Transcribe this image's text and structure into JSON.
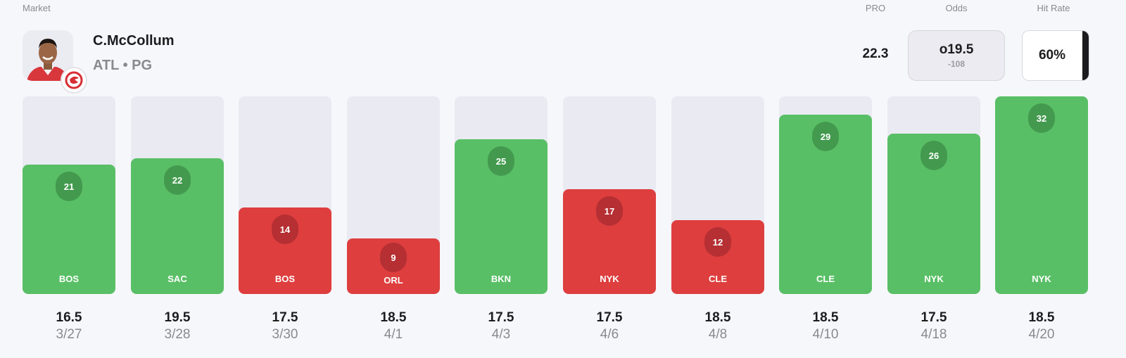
{
  "header": {
    "market_label": "Market",
    "pro_label": "PRO",
    "odds_label": "Odds",
    "hit_rate_label": "Hit Rate"
  },
  "player": {
    "name": "C.McCollum",
    "team": "ATL",
    "position": "PG",
    "subtitle": "ATL • PG",
    "team_logo_icon": "atlanta-hawks-logo-icon"
  },
  "stats": {
    "pro": "22.3",
    "odds_line": "o19.5",
    "odds_price": "-108",
    "hit_rate": "60%"
  },
  "colors": {
    "over": "#59bf66",
    "under": "#de3e3e",
    "over_badge": "#439a4f",
    "under_badge": "#b52f33",
    "track": "#eaeaf2",
    "background": "#f6f7fb"
  },
  "games": [
    {
      "value": "21",
      "opponent": "BOS",
      "line": "16.5",
      "date": "3/27",
      "result": "over"
    },
    {
      "value": "22",
      "opponent": "SAC",
      "line": "19.5",
      "date": "3/28",
      "result": "over"
    },
    {
      "value": "14",
      "opponent": "BOS",
      "line": "17.5",
      "date": "3/30",
      "result": "under"
    },
    {
      "value": "9",
      "opponent": "ORL",
      "line": "18.5",
      "date": "4/1",
      "result": "under"
    },
    {
      "value": "25",
      "opponent": "BKN",
      "line": "17.5",
      "date": "4/3",
      "result": "over"
    },
    {
      "value": "17",
      "opponent": "NYK",
      "line": "17.5",
      "date": "4/6",
      "result": "under"
    },
    {
      "value": "12",
      "opponent": "CLE",
      "line": "18.5",
      "date": "4/8",
      "result": "under"
    },
    {
      "value": "29",
      "opponent": "CLE",
      "line": "18.5",
      "date": "4/10",
      "result": "over"
    },
    {
      "value": "26",
      "opponent": "NYK",
      "line": "17.5",
      "date": "4/18",
      "result": "over"
    },
    {
      "value": "32",
      "opponent": "NYK",
      "line": "18.5",
      "date": "4/20",
      "result": "over"
    }
  ],
  "chart_data": {
    "type": "bar",
    "title": "C.McCollum — Market",
    "categories": [
      "3/27",
      "3/28",
      "3/30",
      "4/1",
      "4/3",
      "4/6",
      "4/8",
      "4/10",
      "4/18",
      "4/20"
    ],
    "opponents": [
      "BOS",
      "SAC",
      "BOS",
      "ORL",
      "BKN",
      "NYK",
      "CLE",
      "CLE",
      "NYK",
      "NYK"
    ],
    "values": [
      21,
      22,
      14,
      9,
      25,
      17,
      12,
      29,
      26,
      32
    ],
    "lines": [
      16.5,
      19.5,
      17.5,
      18.5,
      17.5,
      17.5,
      18.5,
      18.5,
      17.5,
      18.5
    ],
    "results": [
      "over",
      "over",
      "under",
      "under",
      "over",
      "under",
      "under",
      "over",
      "over",
      "over"
    ],
    "xlabel": "",
    "ylabel": "",
    "ylim": [
      0,
      32
    ],
    "grid": false,
    "legend": null,
    "summary": {
      "pro": 22.3,
      "odds_line": "o19.5",
      "odds_price": -108,
      "hit_rate": "60%"
    }
  }
}
